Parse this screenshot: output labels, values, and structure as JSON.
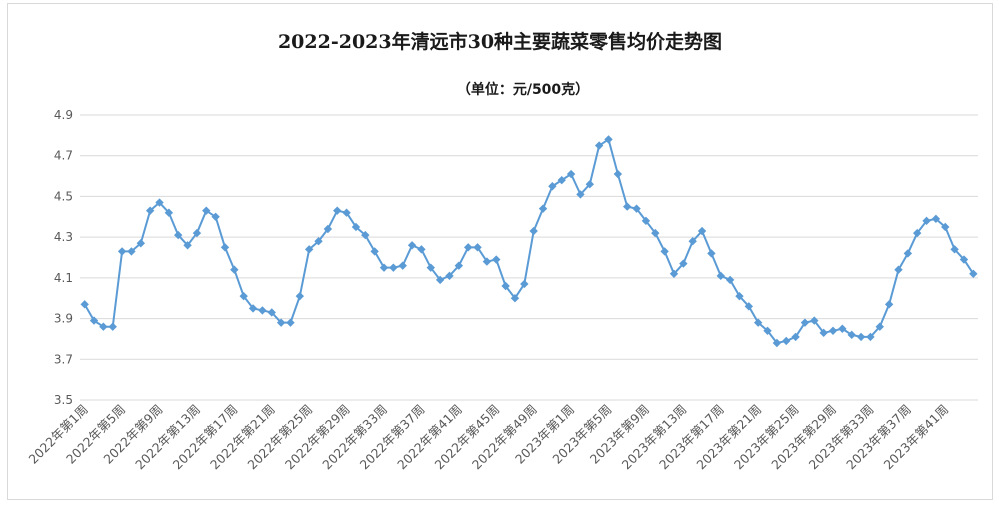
{
  "chart_data": {
    "type": "line",
    "title": "2022-2023年清远市30种主要蔬菜零售均价走势图",
    "subtitle": "（单位：元/500克）",
    "ylim": [
      3.5,
      4.9
    ],
    "yticks": [
      "3.5",
      "3.7",
      "3.9",
      "4.1",
      "4.3",
      "4.5",
      "4.7",
      "4.9"
    ],
    "grid": true,
    "legend": "none",
    "color": "#5b9bd5",
    "tick_labels": [
      "2022年第1周",
      "2022年第5周",
      "2022年第9周",
      "2022年第13周",
      "2022年第17周",
      "2022年第21周",
      "2022年第25周",
      "2022年第29周",
      "2022年第33周",
      "2022年第37周",
      "2022年第41周",
      "2022年第45周",
      "2022年第49周",
      "2023年第1周",
      "2023年第5周",
      "2023年第9周",
      "2023年第13周",
      "2023年第17周",
      "2023年第21周",
      "2023年第25周",
      "2023年第29周",
      "2023年第33周",
      "2023年第37周",
      "2023年第41周"
    ],
    "values": [
      3.97,
      3.89,
      3.86,
      3.86,
      4.23,
      4.23,
      4.27,
      4.43,
      4.47,
      4.42,
      4.31,
      4.26,
      4.32,
      4.43,
      4.4,
      4.25,
      4.14,
      4.01,
      3.95,
      3.94,
      3.93,
      3.88,
      3.88,
      4.01,
      4.24,
      4.28,
      4.34,
      4.43,
      4.42,
      4.35,
      4.31,
      4.23,
      4.15,
      4.15,
      4.16,
      4.26,
      4.24,
      4.15,
      4.09,
      4.11,
      4.16,
      4.25,
      4.25,
      4.18,
      4.19,
      4.06,
      4.0,
      4.07,
      4.33,
      4.44,
      4.55,
      4.58,
      4.61,
      4.51,
      4.56,
      4.75,
      4.78,
      4.61,
      4.45,
      4.44,
      4.38,
      4.32,
      4.23,
      4.12,
      4.17,
      4.28,
      4.33,
      4.22,
      4.11,
      4.09,
      4.01,
      3.96,
      3.88,
      3.84,
      3.78,
      3.79,
      3.81,
      3.88,
      3.89,
      3.83,
      3.84,
      3.85,
      3.82,
      3.81,
      3.81,
      3.86,
      3.97,
      4.14,
      4.22,
      4.32,
      4.38,
      4.39,
      4.35,
      4.24,
      4.19,
      4.12
    ]
  }
}
